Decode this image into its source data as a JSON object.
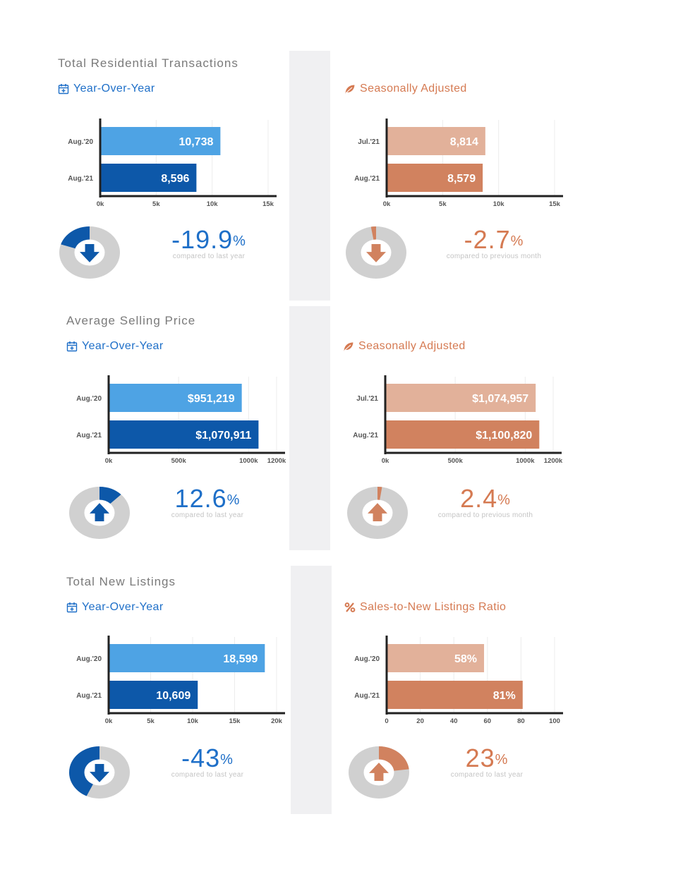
{
  "colors": {
    "blue_light": "#4ea3e4",
    "blue_dark": "#0d58a9",
    "orange_light": "#e2b19a",
    "orange_dark": "#d1825f",
    "donut_gray": "#d0d0d0",
    "text_blue": "#1e6fc8",
    "text_orange": "#d57a52"
  },
  "panels": [
    {
      "section_title": "Total Residential Transactions",
      "subtitle": "Year-Over-Year",
      "subtitle_icon": "calendar-icon",
      "theme": "blue",
      "chart": {
        "categories": [
          "Aug.'20",
          "Aug.'21"
        ],
        "labels": [
          "10,738",
          "8,596"
        ],
        "values": [
          10738,
          8596
        ],
        "ticks": [
          "0k",
          "5k",
          "10k",
          "15k"
        ],
        "tick_values": [
          0,
          5000,
          10000,
          15000
        ],
        "xmax": 15000
      },
      "change": {
        "value": "-19.9",
        "sign": "%",
        "note": "compared to last year",
        "direction": "down",
        "fraction": 0.199
      }
    },
    {
      "section_title": "",
      "subtitle": "Seasonally Adjusted",
      "subtitle_icon": "leaf-icon",
      "theme": "orange",
      "chart": {
        "categories": [
          "Jul.'21",
          "Aug.'21"
        ],
        "labels": [
          "8,814",
          "8,579"
        ],
        "values": [
          8814,
          8579
        ],
        "ticks": [
          "0k",
          "5k",
          "10k",
          "15k"
        ],
        "tick_values": [
          0,
          5000,
          10000,
          15000
        ],
        "xmax": 15000
      },
      "change": {
        "value": "-2.7",
        "sign": "%",
        "note": "compared to previous month",
        "direction": "down",
        "fraction": 0.027
      }
    },
    {
      "section_title": "Average Selling Price",
      "subtitle": "Year-Over-Year",
      "subtitle_icon": "calendar-icon",
      "theme": "blue",
      "chart": {
        "categories": [
          "Aug.'20",
          "Aug.'21"
        ],
        "labels": [
          "$951,219",
          "$1,070,911"
        ],
        "values": [
          951219,
          1070911
        ],
        "ticks": [
          "0k",
          "500k",
          "1000k",
          "1200k"
        ],
        "tick_values": [
          0,
          500000,
          1000000,
          1200000
        ],
        "xmax": 1200000
      },
      "change": {
        "value": "12.6",
        "sign": "%",
        "note": "compared to last year",
        "direction": "up",
        "fraction": 0.126
      }
    },
    {
      "section_title": "",
      "subtitle": "Seasonally Adjusted",
      "subtitle_icon": "leaf-icon",
      "theme": "orange",
      "chart": {
        "categories": [
          "Jul.'21",
          "Aug.'21"
        ],
        "labels": [
          "$1,074,957",
          "$1,100,820"
        ],
        "values": [
          1074957,
          1100820
        ],
        "ticks": [
          "0k",
          "500k",
          "1000k",
          "1200k"
        ],
        "tick_values": [
          0,
          500000,
          1000000,
          1200000
        ],
        "xmax": 1200000
      },
      "change": {
        "value": "2.4",
        "sign": "%",
        "note": "compared to previous month",
        "direction": "up",
        "fraction": 0.024
      }
    },
    {
      "section_title": "Total New Listings",
      "subtitle": "Year-Over-Year",
      "subtitle_icon": "calendar-icon",
      "theme": "blue",
      "chart": {
        "categories": [
          "Aug.'20",
          "Aug.'21"
        ],
        "labels": [
          "18,599",
          "10,609"
        ],
        "values": [
          18599,
          10609
        ],
        "ticks": [
          "0k",
          "5k",
          "10k",
          "15k",
          "20k"
        ],
        "tick_values": [
          0,
          5000,
          10000,
          15000,
          20000
        ],
        "xmax": 20000
      },
      "change": {
        "value": "-43",
        "sign": "%",
        "note": "compared to last year",
        "direction": "down",
        "fraction": 0.43
      }
    },
    {
      "section_title": "",
      "subtitle": "Sales-to-New Listings Ratio",
      "subtitle_icon": "percent-icon",
      "theme": "orange",
      "chart": {
        "categories": [
          "Aug.'20",
          "Aug.'21"
        ],
        "labels": [
          "58%",
          "81%"
        ],
        "values": [
          58,
          81
        ],
        "ticks": [
          "0",
          "20",
          "40",
          "60",
          "80",
          "100"
        ],
        "tick_values": [
          0,
          20,
          40,
          60,
          80,
          100
        ],
        "xmax": 100
      },
      "change": {
        "value": "23",
        "sign": "%",
        "note": "compared to last year",
        "direction": "up",
        "fraction": 0.23
      }
    }
  ],
  "chart_data": [
    {
      "type": "bar",
      "title": "Total Residential Transactions",
      "subtitle": "Year-Over-Year",
      "categories": [
        "Aug.'20",
        "Aug.'21"
      ],
      "values": [
        10738,
        8596
      ],
      "xlim": [
        0,
        15000
      ],
      "ticks": [
        "0k",
        "5k",
        "10k",
        "15k"
      ],
      "grid": true,
      "orientation": "horizontal"
    },
    {
      "type": "bar",
      "subtitle": "Seasonally Adjusted",
      "categories": [
        "Jul.'21",
        "Aug.'21"
      ],
      "values": [
        8814,
        8579
      ],
      "xlim": [
        0,
        15000
      ],
      "ticks": [
        "0k",
        "5k",
        "10k",
        "15k"
      ],
      "grid": true,
      "orientation": "horizontal"
    },
    {
      "type": "bar",
      "title": "Average Selling Price",
      "subtitle": "Year-Over-Year",
      "categories": [
        "Aug.'20",
        "Aug.'21"
      ],
      "values": [
        951219,
        1070911
      ],
      "xlim": [
        0,
        1200000
      ],
      "ticks": [
        "0k",
        "500k",
        "1000k",
        "1200k"
      ],
      "grid": true,
      "orientation": "horizontal"
    },
    {
      "type": "bar",
      "subtitle": "Seasonally Adjusted",
      "categories": [
        "Jul.'21",
        "Aug.'21"
      ],
      "values": [
        1074957,
        1100820
      ],
      "xlim": [
        0,
        1200000
      ],
      "ticks": [
        "0k",
        "500k",
        "1000k",
        "1200k"
      ],
      "grid": true,
      "orientation": "horizontal"
    },
    {
      "type": "bar",
      "title": "Total New Listings",
      "subtitle": "Year-Over-Year",
      "categories": [
        "Aug.'20",
        "Aug.'21"
      ],
      "values": [
        18599,
        10609
      ],
      "xlim": [
        0,
        20000
      ],
      "ticks": [
        "0k",
        "5k",
        "10k",
        "15k",
        "20k"
      ],
      "grid": true,
      "orientation": "horizontal"
    },
    {
      "type": "bar",
      "subtitle": "Sales-to-New Listings Ratio",
      "categories": [
        "Aug.'20",
        "Aug.'21"
      ],
      "values": [
        58,
        81
      ],
      "xlim": [
        0,
        100
      ],
      "ticks": [
        "0",
        "20",
        "40",
        "60",
        "80",
        "100"
      ],
      "grid": true,
      "orientation": "horizontal"
    },
    {
      "type": "pie",
      "values": [
        19.9
      ],
      "annotation": "-19.9%",
      "note": "compared to last year"
    },
    {
      "type": "pie",
      "values": [
        2.7
      ],
      "annotation": "-2.7%",
      "note": "compared to previous month"
    },
    {
      "type": "pie",
      "values": [
        12.6
      ],
      "annotation": "12.6%",
      "note": "compared to last year"
    },
    {
      "type": "pie",
      "values": [
        2.4
      ],
      "annotation": "2.4%",
      "note": "compared to previous month"
    },
    {
      "type": "pie",
      "values": [
        43
      ],
      "annotation": "-43%",
      "note": "compared to last year"
    },
    {
      "type": "pie",
      "values": [
        23
      ],
      "annotation": "23%",
      "note": "compared to last year"
    }
  ]
}
